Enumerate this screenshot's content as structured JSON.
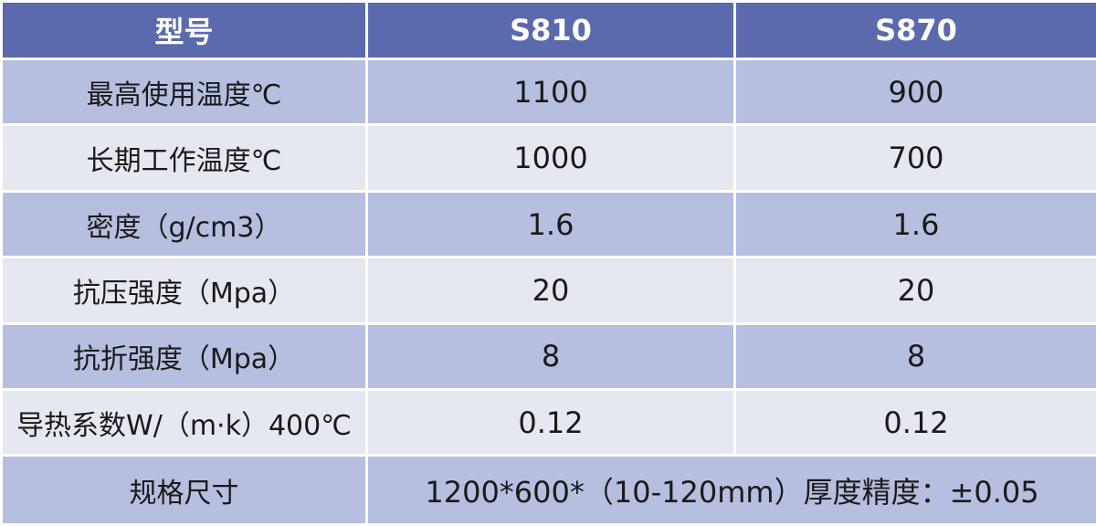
{
  "table": {
    "header": [
      "型号",
      "S810",
      "S870"
    ],
    "rows": [
      [
        "最高使用温度℃",
        "1100",
        "900"
      ],
      [
        "长期工作温度℃",
        "1000",
        "700"
      ],
      [
        "密度（g/cm3）",
        "1.6",
        "1.6"
      ],
      [
        "抗压强度（Mpa）",
        "20",
        "20"
      ],
      [
        "抗折强度（Mpa）",
        "8",
        "8"
      ],
      [
        "导热系数W/（m·k）400℃",
        "0.12",
        "0.12"
      ],
      [
        "规格尺寸",
        "1200*600*（10-120mm）厚度精度：±0.05"
      ]
    ]
  }
}
